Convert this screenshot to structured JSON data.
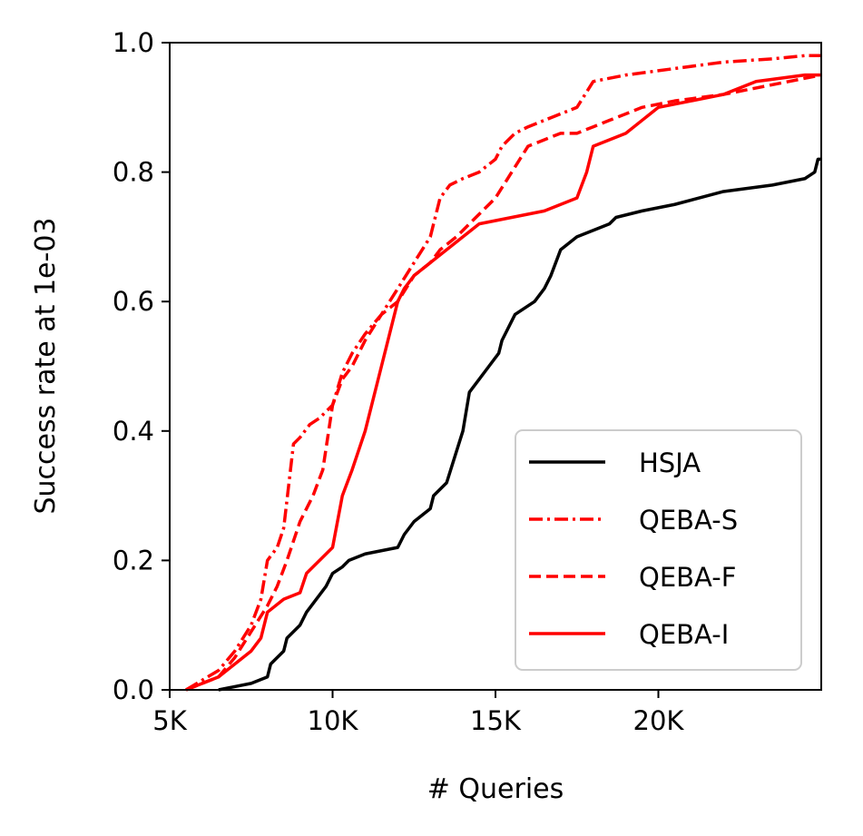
{
  "chart_data": {
    "type": "line",
    "title": "",
    "xlabel": "# Queries",
    "ylabel": "Success rate at 1e-03",
    "xlim": [
      5000,
      25000
    ],
    "ylim": [
      0,
      1.0
    ],
    "xticks": [
      {
        "value": 5000,
        "label": "5K"
      },
      {
        "value": 10000,
        "label": "10K"
      },
      {
        "value": 15000,
        "label": "15K"
      },
      {
        "value": 20000,
        "label": "20K"
      }
    ],
    "yticks": [
      {
        "value": 0.0,
        "label": "0.0"
      },
      {
        "value": 0.2,
        "label": "0.2"
      },
      {
        "value": 0.4,
        "label": "0.4"
      },
      {
        "value": 0.6,
        "label": "0.6"
      },
      {
        "value": 0.8,
        "label": "0.8"
      },
      {
        "value": 1.0,
        "label": "1.0"
      }
    ],
    "grid": false,
    "legend_position": "lower-right",
    "series": [
      {
        "name": "HSJA",
        "color": "#000000",
        "style": "solid",
        "x": [
          6500,
          7500,
          8000,
          8100,
          8500,
          8600,
          9000,
          9200,
          9500,
          9800,
          10000,
          10300,
          10500,
          11000,
          12000,
          12200,
          12500,
          13000,
          13100,
          13500,
          14000,
          14200,
          14500,
          14800,
          15100,
          15200,
          15600,
          16200,
          16500,
          16700,
          17000,
          17500,
          18500,
          18700,
          19500,
          20500,
          22000,
          23500,
          24500,
          24800,
          24900,
          25000
        ],
        "y": [
          0.0,
          0.01,
          0.02,
          0.04,
          0.06,
          0.08,
          0.1,
          0.12,
          0.14,
          0.16,
          0.18,
          0.19,
          0.2,
          0.21,
          0.22,
          0.24,
          0.26,
          0.28,
          0.3,
          0.32,
          0.4,
          0.46,
          0.48,
          0.5,
          0.52,
          0.54,
          0.58,
          0.6,
          0.62,
          0.64,
          0.68,
          0.7,
          0.72,
          0.73,
          0.74,
          0.75,
          0.77,
          0.78,
          0.79,
          0.8,
          0.82,
          0.82
        ]
      },
      {
        "name": "QEBA-S",
        "color": "#ff0000",
        "style": "dashdot",
        "x": [
          5500,
          6500,
          7000,
          7500,
          7800,
          8000,
          8300,
          8500,
          8800,
          9000,
          9300,
          9600,
          10000,
          10300,
          10600,
          11000,
          11500,
          12000,
          12500,
          13000,
          13300,
          13600,
          14000,
          14500,
          15000,
          15200,
          15600,
          16000,
          16500,
          17000,
          17500,
          18000,
          19000,
          20500,
          22000,
          23500,
          24500,
          25000
        ],
        "y": [
          0.0,
          0.03,
          0.06,
          0.1,
          0.14,
          0.2,
          0.22,
          0.25,
          0.38,
          0.39,
          0.41,
          0.42,
          0.44,
          0.49,
          0.52,
          0.55,
          0.58,
          0.62,
          0.66,
          0.7,
          0.76,
          0.78,
          0.79,
          0.8,
          0.82,
          0.84,
          0.86,
          0.87,
          0.88,
          0.89,
          0.9,
          0.94,
          0.95,
          0.96,
          0.97,
          0.975,
          0.98,
          0.98
        ]
      },
      {
        "name": "QEBA-F",
        "color": "#ff0000",
        "style": "dashed",
        "x": [
          5500,
          6500,
          7000,
          7500,
          8000,
          8300,
          8600,
          9000,
          9400,
          9700,
          10000,
          10300,
          10600,
          11000,
          11500,
          12000,
          12500,
          13000,
          13300,
          13800,
          14200,
          14600,
          15000,
          15500,
          16000,
          16500,
          17000,
          17500,
          18000,
          18500,
          19500,
          20500,
          22000,
          23000,
          24000,
          25000
        ],
        "y": [
          0.0,
          0.02,
          0.05,
          0.09,
          0.13,
          0.16,
          0.2,
          0.26,
          0.3,
          0.34,
          0.44,
          0.48,
          0.5,
          0.54,
          0.58,
          0.6,
          0.64,
          0.66,
          0.68,
          0.7,
          0.72,
          0.74,
          0.76,
          0.8,
          0.84,
          0.85,
          0.86,
          0.86,
          0.87,
          0.88,
          0.9,
          0.91,
          0.92,
          0.93,
          0.94,
          0.95
        ]
      },
      {
        "name": "QEBA-I",
        "color": "#ff0000",
        "style": "solid",
        "x": [
          5500,
          6500,
          7000,
          7500,
          7800,
          8000,
          8500,
          9000,
          9200,
          9600,
          10000,
          10300,
          10600,
          11000,
          11200,
          11500,
          11800,
          12000,
          12200,
          12500,
          13000,
          13500,
          14000,
          14500,
          15500,
          16500,
          17500,
          17800,
          18000,
          19000,
          19500,
          20000,
          21000,
          22000,
          23000,
          24500,
          25000
        ],
        "y": [
          0.0,
          0.02,
          0.04,
          0.06,
          0.08,
          0.12,
          0.14,
          0.15,
          0.18,
          0.2,
          0.22,
          0.3,
          0.34,
          0.4,
          0.44,
          0.5,
          0.56,
          0.6,
          0.62,
          0.64,
          0.66,
          0.68,
          0.7,
          0.72,
          0.73,
          0.74,
          0.76,
          0.8,
          0.84,
          0.86,
          0.88,
          0.9,
          0.91,
          0.92,
          0.94,
          0.95,
          0.95
        ]
      }
    ]
  }
}
